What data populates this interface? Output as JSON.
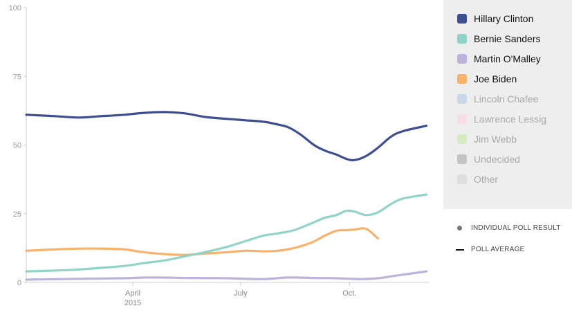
{
  "chart_data": {
    "type": "line",
    "ylim": [
      0,
      100
    ],
    "y_ticks": [
      "100",
      "75",
      "50",
      "25",
      "0"
    ],
    "x_ticks": [
      {
        "label": "April",
        "sublabel": "2015",
        "date": "2015-04-01"
      },
      {
        "label": "July",
        "sublabel": "",
        "date": "2015-07-01"
      },
      {
        "label": "Oct.",
        "sublabel": "",
        "date": "2015-10-01"
      }
    ],
    "xlim": [
      "2015-01-01",
      "2015-12-07"
    ],
    "grid": false,
    "legend_position": "right",
    "series": [
      {
        "name": "Hillary Clinton",
        "color": "#3e4f91",
        "x": [
          "2015-01-01",
          "2015-01-25",
          "2015-02-15",
          "2015-03-05",
          "2015-03-25",
          "2015-04-10",
          "2015-04-28",
          "2015-05-15",
          "2015-06-01",
          "2015-06-20",
          "2015-07-05",
          "2015-07-20",
          "2015-08-01",
          "2015-08-10",
          "2015-08-20",
          "2015-09-01",
          "2015-09-10",
          "2015-09-20",
          "2015-09-28",
          "2015-10-05",
          "2015-10-15",
          "2015-10-25",
          "2015-11-05",
          "2015-11-15",
          "2015-12-05"
        ],
        "y": [
          61,
          60.5,
          60,
          60.5,
          61,
          61.7,
          62,
          61.5,
          60.2,
          59.5,
          59,
          58.5,
          57.5,
          56.5,
          54,
          50,
          48,
          46.5,
          45,
          44.5,
          46,
          49,
          53,
          55,
          57
        ]
      },
      {
        "name": "Bernie Sanders",
        "color": "#8fd4c8",
        "x": [
          "2015-01-01",
          "2015-01-25",
          "2015-02-15",
          "2015-03-05",
          "2015-03-25",
          "2015-04-10",
          "2015-04-28",
          "2015-05-15",
          "2015-06-01",
          "2015-06-20",
          "2015-07-05",
          "2015-07-20",
          "2015-08-01",
          "2015-08-15",
          "2015-08-30",
          "2015-09-10",
          "2015-09-20",
          "2015-09-28",
          "2015-10-05",
          "2015-10-15",
          "2015-10-25",
          "2015-11-05",
          "2015-11-15",
          "2015-12-05"
        ],
        "y": [
          4,
          4.3,
          4.7,
          5.3,
          6,
          7,
          8,
          9.5,
          11,
          13,
          15,
          17,
          17.8,
          19,
          21.5,
          23.5,
          24.5,
          26,
          25.8,
          24.5,
          25.5,
          28.5,
          30.5,
          32
        ]
      },
      {
        "name": "Martin O'Malley",
        "color": "#bdb3da",
        "x": [
          "2015-01-01",
          "2015-02-15",
          "2015-03-25",
          "2015-04-15",
          "2015-05-20",
          "2015-06-20",
          "2015-07-20",
          "2015-08-10",
          "2015-09-01",
          "2015-09-20",
          "2015-10-10",
          "2015-10-25",
          "2015-11-10",
          "2015-12-05"
        ],
        "y": [
          1,
          1.3,
          1.5,
          1.8,
          1.6,
          1.5,
          1.2,
          1.8,
          1.6,
          1.5,
          1.2,
          1.5,
          2.5,
          4
        ]
      },
      {
        "name": "Joe Biden",
        "color": "#f8b26a",
        "x": [
          "2015-01-01",
          "2015-01-25",
          "2015-02-15",
          "2015-03-05",
          "2015-03-25",
          "2015-04-10",
          "2015-04-28",
          "2015-05-15",
          "2015-06-01",
          "2015-06-20",
          "2015-07-05",
          "2015-07-20",
          "2015-08-01",
          "2015-08-15",
          "2015-08-30",
          "2015-09-10",
          "2015-09-20",
          "2015-09-28",
          "2015-10-05",
          "2015-10-15",
          "2015-10-25"
        ],
        "y": [
          11.5,
          12,
          12.3,
          12.3,
          12,
          11,
          10.3,
          10,
          10.5,
          11,
          11.5,
          11.3,
          11.5,
          12.5,
          14.5,
          17,
          18.8,
          19,
          19.2,
          19.5,
          16
        ]
      }
    ]
  },
  "legend": {
    "items": [
      {
        "label": "Hillary Clinton",
        "color": "#3e4f91",
        "active": true
      },
      {
        "label": "Bernie Sanders",
        "color": "#8fd4c8",
        "active": true
      },
      {
        "label": "Martin O'Malley",
        "color": "#bdb3da",
        "active": true
      },
      {
        "label": "Joe Biden",
        "color": "#f8b26a",
        "active": true
      },
      {
        "label": "Lincoln Chafee",
        "color": "#c8dae8",
        "active": false
      },
      {
        "label": "Lawrence Lessig",
        "color": "#f7dde8",
        "active": false
      },
      {
        "label": "Jim Webb",
        "color": "#d6ebc2",
        "active": false
      },
      {
        "label": "Undecided",
        "color": "#c4c4c4",
        "active": false
      },
      {
        "label": "Other",
        "color": "#dedede",
        "active": false
      }
    ]
  },
  "key": {
    "individual_poll_label": "INDIVIDUAL POLL RESULT",
    "poll_average_label": "POLL AVERAGE"
  }
}
